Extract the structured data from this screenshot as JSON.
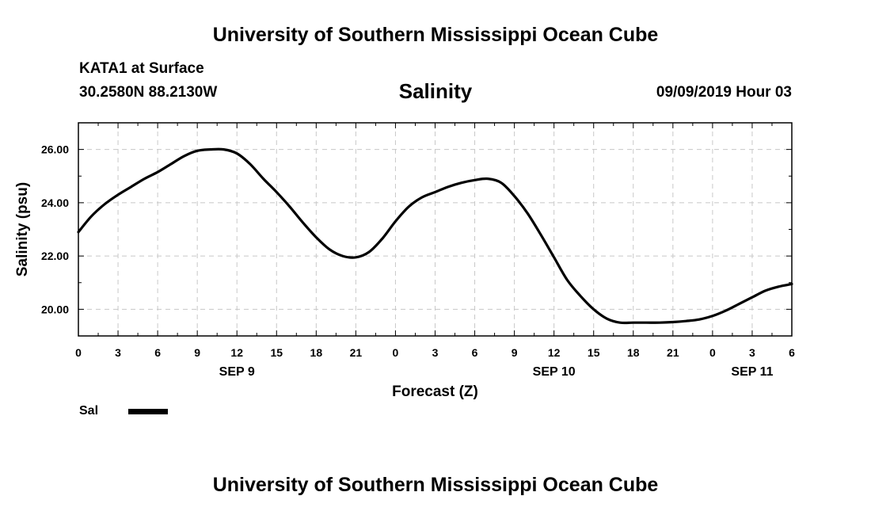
{
  "header": {
    "top_title": "University of Southern Mississippi Ocean Cube",
    "station": "KATA1 at Surface",
    "coords": "30.2580N 88.2130W",
    "chart_title": "Salinity",
    "datetime": "09/09/2019 Hour 03",
    "bottom_title": "University of Southern Mississippi Ocean Cube"
  },
  "legend": {
    "label": "Sal",
    "color": "#000000"
  },
  "chart_data": {
    "type": "line",
    "title": "Salinity",
    "xlabel": "Forecast (Z)",
    "ylabel": "Salinity (psu)",
    "xlim": [
      0,
      54
    ],
    "ylim": [
      19.0,
      27.0
    ],
    "grid": true,
    "legend_position": "bottom-left",
    "x_ticks": [
      0,
      3,
      6,
      9,
      12,
      15,
      18,
      21,
      24,
      27,
      30,
      33,
      36,
      39,
      42,
      45,
      48,
      51,
      54
    ],
    "x_tick_labels": [
      "0",
      "3",
      "6",
      "9",
      "12",
      "15",
      "18",
      "21",
      "0",
      "3",
      "6",
      "9",
      "12",
      "15",
      "18",
      "21",
      "0",
      "3",
      "6"
    ],
    "y_ticks": [
      20,
      22,
      24,
      26
    ],
    "y_tick_labels": [
      "20.00",
      "22.00",
      "24.00",
      "26.00"
    ],
    "day_labels": [
      {
        "x": 12,
        "label": "SEP 9"
      },
      {
        "x": 36,
        "label": "SEP 10"
      },
      {
        "x": 51,
        "label": "SEP 11"
      }
    ],
    "series": [
      {
        "name": "Sal",
        "color": "#000000",
        "x": [
          0,
          1,
          2,
          3,
          4,
          5,
          6,
          7,
          8,
          9,
          10,
          11,
          12,
          13,
          14,
          15,
          16,
          17,
          18,
          19,
          20,
          21,
          22,
          23,
          24,
          25,
          26,
          27,
          28,
          29,
          30,
          31,
          32,
          33,
          34,
          35,
          36,
          37,
          38,
          39,
          40,
          41,
          42,
          43,
          44,
          45,
          46,
          47,
          48,
          49,
          50,
          51,
          52,
          53,
          54
        ],
        "values": [
          22.9,
          23.5,
          23.95,
          24.3,
          24.6,
          24.9,
          25.15,
          25.45,
          25.75,
          25.95,
          26.0,
          26.0,
          25.85,
          25.45,
          24.9,
          24.4,
          23.85,
          23.25,
          22.7,
          22.25,
          22.0,
          21.95,
          22.15,
          22.65,
          23.3,
          23.85,
          24.2,
          24.4,
          24.6,
          24.75,
          24.85,
          24.9,
          24.75,
          24.25,
          23.6,
          22.8,
          21.95,
          21.1,
          20.5,
          20.0,
          19.65,
          19.5,
          19.5,
          19.5,
          19.5,
          19.52,
          19.56,
          19.62,
          19.75,
          19.95,
          20.2,
          20.45,
          20.7,
          20.85,
          20.95
        ]
      }
    ]
  }
}
